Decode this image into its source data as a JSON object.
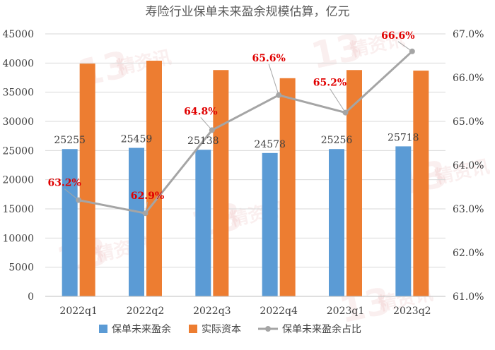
{
  "chart_data": {
    "type": "bar",
    "title": "寿险行业保单未来盈余规模估算，亿元",
    "categories": [
      "2022q1",
      "2022q2",
      "2022q3",
      "2022q4",
      "2023q1",
      "2023q2"
    ],
    "series": [
      {
        "name": "保单未来盈余",
        "type": "bar",
        "axis": "left",
        "color": "#5b9bd5",
        "values": [
          25255,
          25459,
          25138,
          24578,
          25256,
          25718
        ],
        "labels": [
          "25255",
          "25459",
          "25138",
          "24578",
          "25256",
          "25718"
        ]
      },
      {
        "name": "实际资本",
        "type": "bar",
        "axis": "left",
        "color": "#ed7d31",
        "values": [
          39900,
          40400,
          38800,
          37400,
          38800,
          38700
        ]
      },
      {
        "name": "保单未来盈余占比",
        "type": "line",
        "axis": "right",
        "color": "#a5a5a5",
        "values": [
          63.2,
          62.9,
          64.8,
          65.6,
          65.2,
          66.6
        ],
        "labels": [
          "63.2%",
          "62.9%",
          "64.8%",
          "65.6%",
          "65.2%",
          "66.6%"
        ],
        "label_color": "#e00000"
      }
    ],
    "y_left": {
      "min": 0,
      "max": 45000,
      "step": 5000,
      "ticks": [
        "0",
        "5000",
        "10000",
        "15000",
        "20000",
        "25000",
        "30000",
        "35000",
        "40000",
        "45000"
      ]
    },
    "y_right": {
      "min": 61.0,
      "max": 67.0,
      "step": 1.0,
      "ticks": [
        "61.0%",
        "62.0%",
        "63.0%",
        "64.0%",
        "65.0%",
        "66.0%",
        "67.0%"
      ]
    },
    "grid": true,
    "legend_position": "bottom"
  },
  "watermark": {
    "text_number": "13",
    "text_chars": "精资讯"
  }
}
